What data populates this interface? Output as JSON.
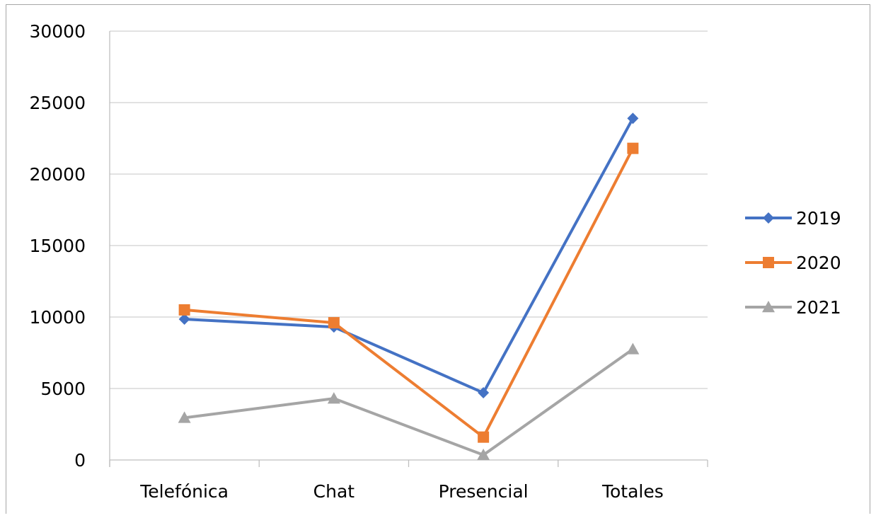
{
  "chart_data": {
    "type": "line",
    "title": "",
    "xlabel": "",
    "ylabel": "",
    "categories": [
      "Telefónica",
      "Chat",
      "Presencial",
      "Totales"
    ],
    "ylim": [
      0,
      30000
    ],
    "yticks": [
      0,
      5000,
      10000,
      15000,
      20000,
      25000,
      30000
    ],
    "grid": "horizontal",
    "legend_position": "right",
    "series": [
      {
        "name": "2019",
        "values": [
          9850,
          9300,
          4700,
          23900
        ],
        "color": "#4472C4",
        "marker": "diamond"
      },
      {
        "name": "2020",
        "values": [
          10500,
          9600,
          1600,
          21800
        ],
        "color": "#ED7D31",
        "marker": "square"
      },
      {
        "name": "2021",
        "values": [
          2950,
          4300,
          350,
          7750
        ],
        "color": "#A5A5A5",
        "marker": "triangle"
      }
    ]
  }
}
